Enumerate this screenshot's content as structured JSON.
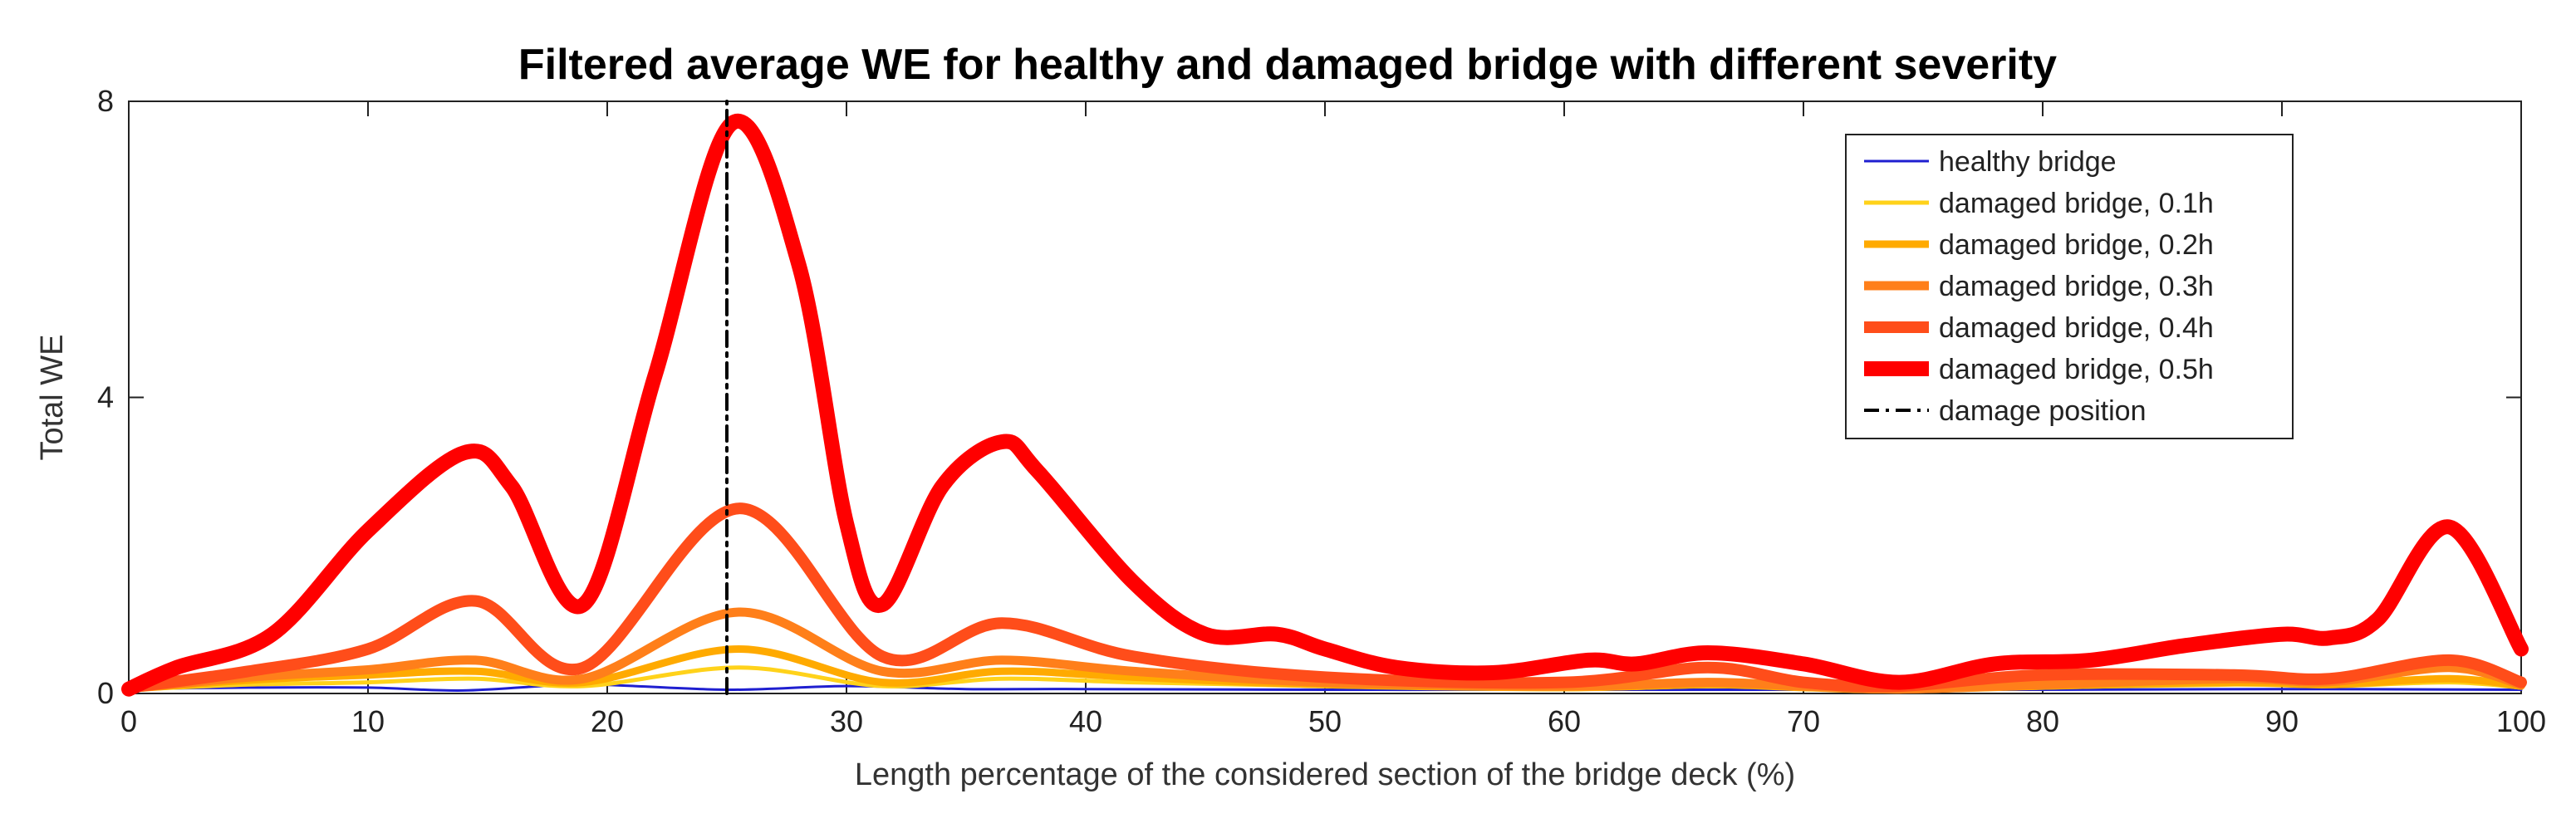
{
  "chart_data": {
    "type": "line",
    "title": "Filtered average WE for healthy and damaged bridge with different severity",
    "xlabel": "Length percentage of the considered section of the bridge deck (%)",
    "ylabel": "Total WE",
    "xlim": [
      0,
      100
    ],
    "ylim": [
      0,
      8
    ],
    "xticks": [
      0,
      10,
      20,
      30,
      40,
      50,
      60,
      70,
      80,
      90,
      100
    ],
    "yticks": [
      0,
      4,
      8
    ],
    "xtick_labels": [
      "0",
      "10",
      "20",
      "30",
      "40",
      "50",
      "60",
      "70",
      "80",
      "90",
      "100"
    ],
    "ytick_labels": [
      "0",
      "4",
      "8"
    ],
    "legend_position": "top-right",
    "series": [
      {
        "name": "healthy bridge",
        "color": "#1f1fd0",
        "x": [
          0,
          5,
          10,
          14,
          19,
          25,
          30,
          35,
          40,
          50,
          60,
          70,
          80,
          90,
          100
        ],
        "y": [
          0.06,
          0.08,
          0.08,
          0.04,
          0.12,
          0.05,
          0.1,
          0.06,
          0.06,
          0.05,
          0.05,
          0.05,
          0.05,
          0.06,
          0.05
        ]
      },
      {
        "name": "damaged bridge, 0.1h",
        "color": "#ffd21a",
        "x": [
          0,
          5,
          10,
          14.5,
          19,
          25.5,
          31.5,
          36.5,
          42,
          50,
          60,
          66,
          70,
          74,
          80,
          88,
          92,
          97,
          100
        ],
        "y": [
          0.05,
          0.12,
          0.15,
          0.2,
          0.1,
          0.35,
          0.1,
          0.2,
          0.15,
          0.1,
          0.06,
          0.1,
          0.08,
          0.04,
          0.08,
          0.12,
          0.1,
          0.15,
          0.08
        ]
      },
      {
        "name": "damaged bridge, 0.2h",
        "color": "#ffaa00",
        "x": [
          0,
          5,
          10,
          14.5,
          19,
          25.5,
          31.5,
          36.5,
          42,
          50,
          60,
          66,
          70,
          74,
          80,
          88,
          92,
          97,
          100
        ],
        "y": [
          0.06,
          0.18,
          0.25,
          0.3,
          0.15,
          0.6,
          0.15,
          0.3,
          0.22,
          0.12,
          0.08,
          0.12,
          0.08,
          0.05,
          0.1,
          0.15,
          0.12,
          0.2,
          0.1
        ]
      },
      {
        "name": "damaged bridge, 0.3h",
        "color": "#ff7f1a",
        "x": [
          0,
          5,
          10,
          14.5,
          19,
          25.5,
          31.5,
          36.5,
          42,
          50,
          60,
          66,
          70,
          74,
          80,
          88,
          92,
          97,
          100
        ],
        "y": [
          0.07,
          0.22,
          0.32,
          0.45,
          0.2,
          1.1,
          0.3,
          0.45,
          0.3,
          0.15,
          0.1,
          0.15,
          0.1,
          0.06,
          0.12,
          0.2,
          0.16,
          0.35,
          0.12
        ]
      },
      {
        "name": "damaged bridge, 0.4h",
        "color": "#ff4d1a",
        "x": [
          0,
          5,
          10,
          14.5,
          19,
          25.5,
          31.5,
          36.5,
          42,
          50,
          60,
          66,
          70,
          74,
          80,
          88,
          92,
          97,
          100
        ],
        "y": [
          0.08,
          0.3,
          0.6,
          1.25,
          0.35,
          2.5,
          0.5,
          0.95,
          0.5,
          0.22,
          0.15,
          0.35,
          0.15,
          0.1,
          0.25,
          0.25,
          0.2,
          0.45,
          0.15
        ]
      },
      {
        "name": "damaged bridge, 0.5h",
        "color": "#ff0000",
        "x": [
          0,
          2,
          6,
          10,
          14,
          16,
          19,
          22,
          25.2,
          28,
          30,
          31.5,
          34,
          36.5,
          38,
          42,
          45,
          48,
          50,
          53,
          57,
          61,
          63,
          66,
          70,
          74,
          78,
          82,
          86,
          90,
          92,
          94,
          97,
          100
        ],
        "y": [
          0.06,
          0.35,
          0.8,
          2.2,
          3.25,
          2.8,
          1.2,
          4.3,
          7.7,
          5.8,
          2.3,
          1.2,
          2.8,
          3.4,
          3.0,
          1.5,
          0.8,
          0.8,
          0.6,
          0.35,
          0.28,
          0.45,
          0.4,
          0.55,
          0.4,
          0.15,
          0.4,
          0.45,
          0.65,
          0.8,
          0.75,
          1.0,
          2.25,
          0.6
        ]
      },
      {
        "name": "damage position",
        "color": "#000000",
        "x": [
          25,
          25
        ],
        "y": [
          0,
          8
        ]
      }
    ]
  }
}
